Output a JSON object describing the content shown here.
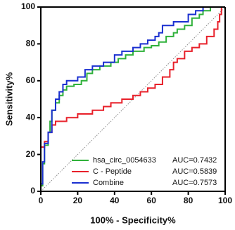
{
  "chart_data": {
    "type": "line",
    "step": true,
    "x_label": "100% - Specificity%",
    "y_label": "Sensitivity%",
    "xlim": [
      0,
      100
    ],
    "ylim": [
      0,
      100
    ],
    "xticks": [
      0,
      20,
      40,
      60,
      80,
      100
    ],
    "yticks": [
      0,
      20,
      40,
      60,
      80,
      100
    ],
    "reference_line": true,
    "legend": "lower right",
    "series": [
      {
        "name": "hsa_circ_0054633",
        "auc_label": "AUC=0.7432",
        "color": "#2fb13a",
        "x": [
          0,
          0,
          1,
          1,
          2,
          2,
          4,
          4,
          5,
          5,
          6,
          6,
          8,
          8,
          10,
          10,
          12,
          12,
          14,
          14,
          18,
          18,
          22,
          22,
          25,
          25,
          28,
          28,
          32,
          32,
          38,
          38,
          42,
          42,
          46,
          46,
          50,
          50,
          56,
          56,
          60,
          60,
          64,
          64,
          68,
          68,
          72,
          72,
          74,
          74,
          78,
          78,
          82,
          82,
          86,
          86,
          88,
          88,
          92,
          92,
          100
        ],
        "values": [
          0,
          3,
          3,
          15,
          15,
          25,
          25,
          32,
          32,
          38,
          38,
          44,
          44,
          48,
          48,
          52,
          52,
          55,
          55,
          57,
          57,
          58,
          58,
          60,
          60,
          64,
          64,
          66,
          66,
          68,
          68,
          70,
          70,
          72,
          72,
          74,
          74,
          76,
          76,
          78,
          78,
          79,
          79,
          81,
          81,
          84,
          84,
          86,
          86,
          88,
          88,
          90,
          90,
          94,
          94,
          96,
          96,
          98,
          98,
          100,
          100
        ]
      },
      {
        "name": "C - Peptide",
        "auc_label": "AUC=0.5839",
        "color": "#e8202a",
        "x": [
          0,
          0,
          2,
          2,
          4,
          4,
          6,
          6,
          8,
          8,
          14,
          14,
          20,
          20,
          28,
          28,
          34,
          34,
          38,
          38,
          44,
          44,
          50,
          50,
          54,
          54,
          58,
          58,
          62,
          62,
          66,
          66,
          70,
          70,
          72,
          72,
          74,
          74,
          78,
          78,
          82,
          82,
          86,
          86,
          90,
          90,
          94,
          94,
          96,
          96,
          97,
          97,
          98,
          98,
          100
        ],
        "values": [
          0,
          24,
          24,
          27,
          27,
          32,
          32,
          36,
          36,
          38,
          38,
          40,
          40,
          42,
          42,
          44,
          44,
          46,
          46,
          48,
          48,
          50,
          50,
          52,
          52,
          54,
          54,
          56,
          56,
          58,
          58,
          62,
          62,
          66,
          66,
          70,
          70,
          72,
          72,
          76,
          76,
          78,
          78,
          80,
          80,
          84,
          84,
          88,
          88,
          92,
          92,
          96,
          96,
          100,
          100
        ]
      },
      {
        "name": "Combine",
        "auc_label": "AUC=0.7573",
        "color": "#1a2fd0",
        "x": [
          0,
          0,
          1,
          1,
          2,
          2,
          4,
          4,
          6,
          6,
          8,
          8,
          10,
          10,
          12,
          12,
          14,
          14,
          20,
          20,
          24,
          24,
          28,
          28,
          34,
          34,
          40,
          40,
          44,
          44,
          50,
          50,
          54,
          54,
          58,
          58,
          62,
          62,
          64,
          64,
          66,
          66,
          72,
          72,
          80,
          80,
          84,
          84,
          88,
          88,
          100
        ],
        "values": [
          0,
          4,
          4,
          16,
          16,
          26,
          26,
          32,
          32,
          44,
          44,
          50,
          50,
          54,
          54,
          58,
          58,
          60,
          60,
          62,
          62,
          66,
          66,
          68,
          68,
          70,
          70,
          74,
          74,
          76,
          76,
          78,
          78,
          80,
          80,
          82,
          82,
          84,
          84,
          86,
          86,
          90,
          90,
          92,
          92,
          96,
          96,
          98,
          98,
          100,
          100
        ]
      }
    ]
  }
}
